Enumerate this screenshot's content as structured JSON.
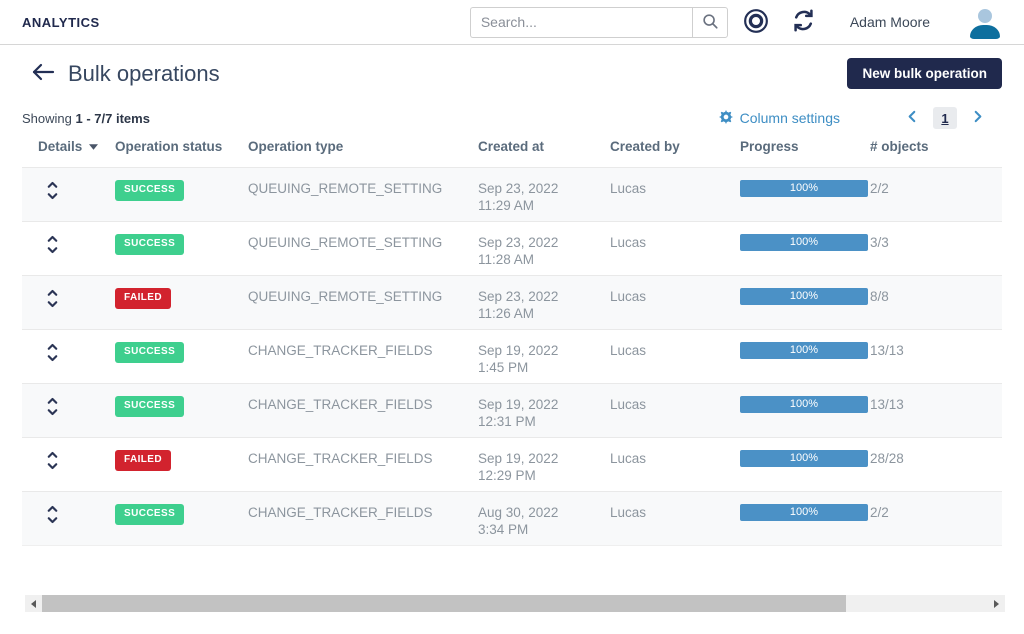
{
  "colors": {
    "navy": "#20294d",
    "link-blue": "#3e8ec4",
    "success": "#3ecf8e",
    "failed": "#d2232e",
    "progress": "#4b91c6",
    "avatar-body": "#0e6f9e"
  },
  "topbar": {
    "brand": "ANALYTICS",
    "search_placeholder": "Search...",
    "user_name": "Adam Moore"
  },
  "page": {
    "title": "Bulk operations",
    "new_button_label": "New bulk operation"
  },
  "toolbar": {
    "showing_label": "Showing",
    "showing_range": "1 - 7/7 items",
    "column_settings_label": "Column settings",
    "page_number": "1"
  },
  "table": {
    "headers": [
      "Details",
      "Operation status",
      "Operation type",
      "Created at",
      "Created by",
      "Progress",
      "# objects"
    ],
    "rows": [
      {
        "status": "SUCCESS",
        "type": "QUEUING_REMOTE_SETTING",
        "created_at": "Sep 23, 2022 11:29 AM",
        "created_by": "Lucas",
        "progress_label": "100%",
        "progress_pct": 100,
        "objects": "2/2"
      },
      {
        "status": "SUCCESS",
        "type": "QUEUING_REMOTE_SETTING",
        "created_at": "Sep 23, 2022 11:28 AM",
        "created_by": "Lucas",
        "progress_label": "100%",
        "progress_pct": 100,
        "objects": "3/3"
      },
      {
        "status": "FAILED",
        "type": "QUEUING_REMOTE_SETTING",
        "created_at": "Sep 23, 2022 11:26 AM",
        "created_by": "Lucas",
        "progress_label": "100%",
        "progress_pct": 100,
        "objects": "8/8"
      },
      {
        "status": "SUCCESS",
        "type": "CHANGE_TRACKER_FIELDS",
        "created_at": "Sep 19, 2022 1:45 PM",
        "created_by": "Lucas",
        "progress_label": "100%",
        "progress_pct": 100,
        "objects": "13/13"
      },
      {
        "status": "SUCCESS",
        "type": "CHANGE_TRACKER_FIELDS",
        "created_at": "Sep 19, 2022 12:31 PM",
        "created_by": "Lucas",
        "progress_label": "100%",
        "progress_pct": 100,
        "objects": "13/13"
      },
      {
        "status": "FAILED",
        "type": "CHANGE_TRACKER_FIELDS",
        "created_at": "Sep 19, 2022 12:29 PM",
        "created_by": "Lucas",
        "progress_label": "100%",
        "progress_pct": 100,
        "objects": "28/28"
      },
      {
        "status": "SUCCESS",
        "type": "CHANGE_TRACKER_FIELDS",
        "created_at": "Aug 30, 2022 3:34 PM",
        "created_by": "Lucas",
        "progress_label": "100%",
        "progress_pct": 100,
        "objects": "2/2"
      }
    ]
  }
}
